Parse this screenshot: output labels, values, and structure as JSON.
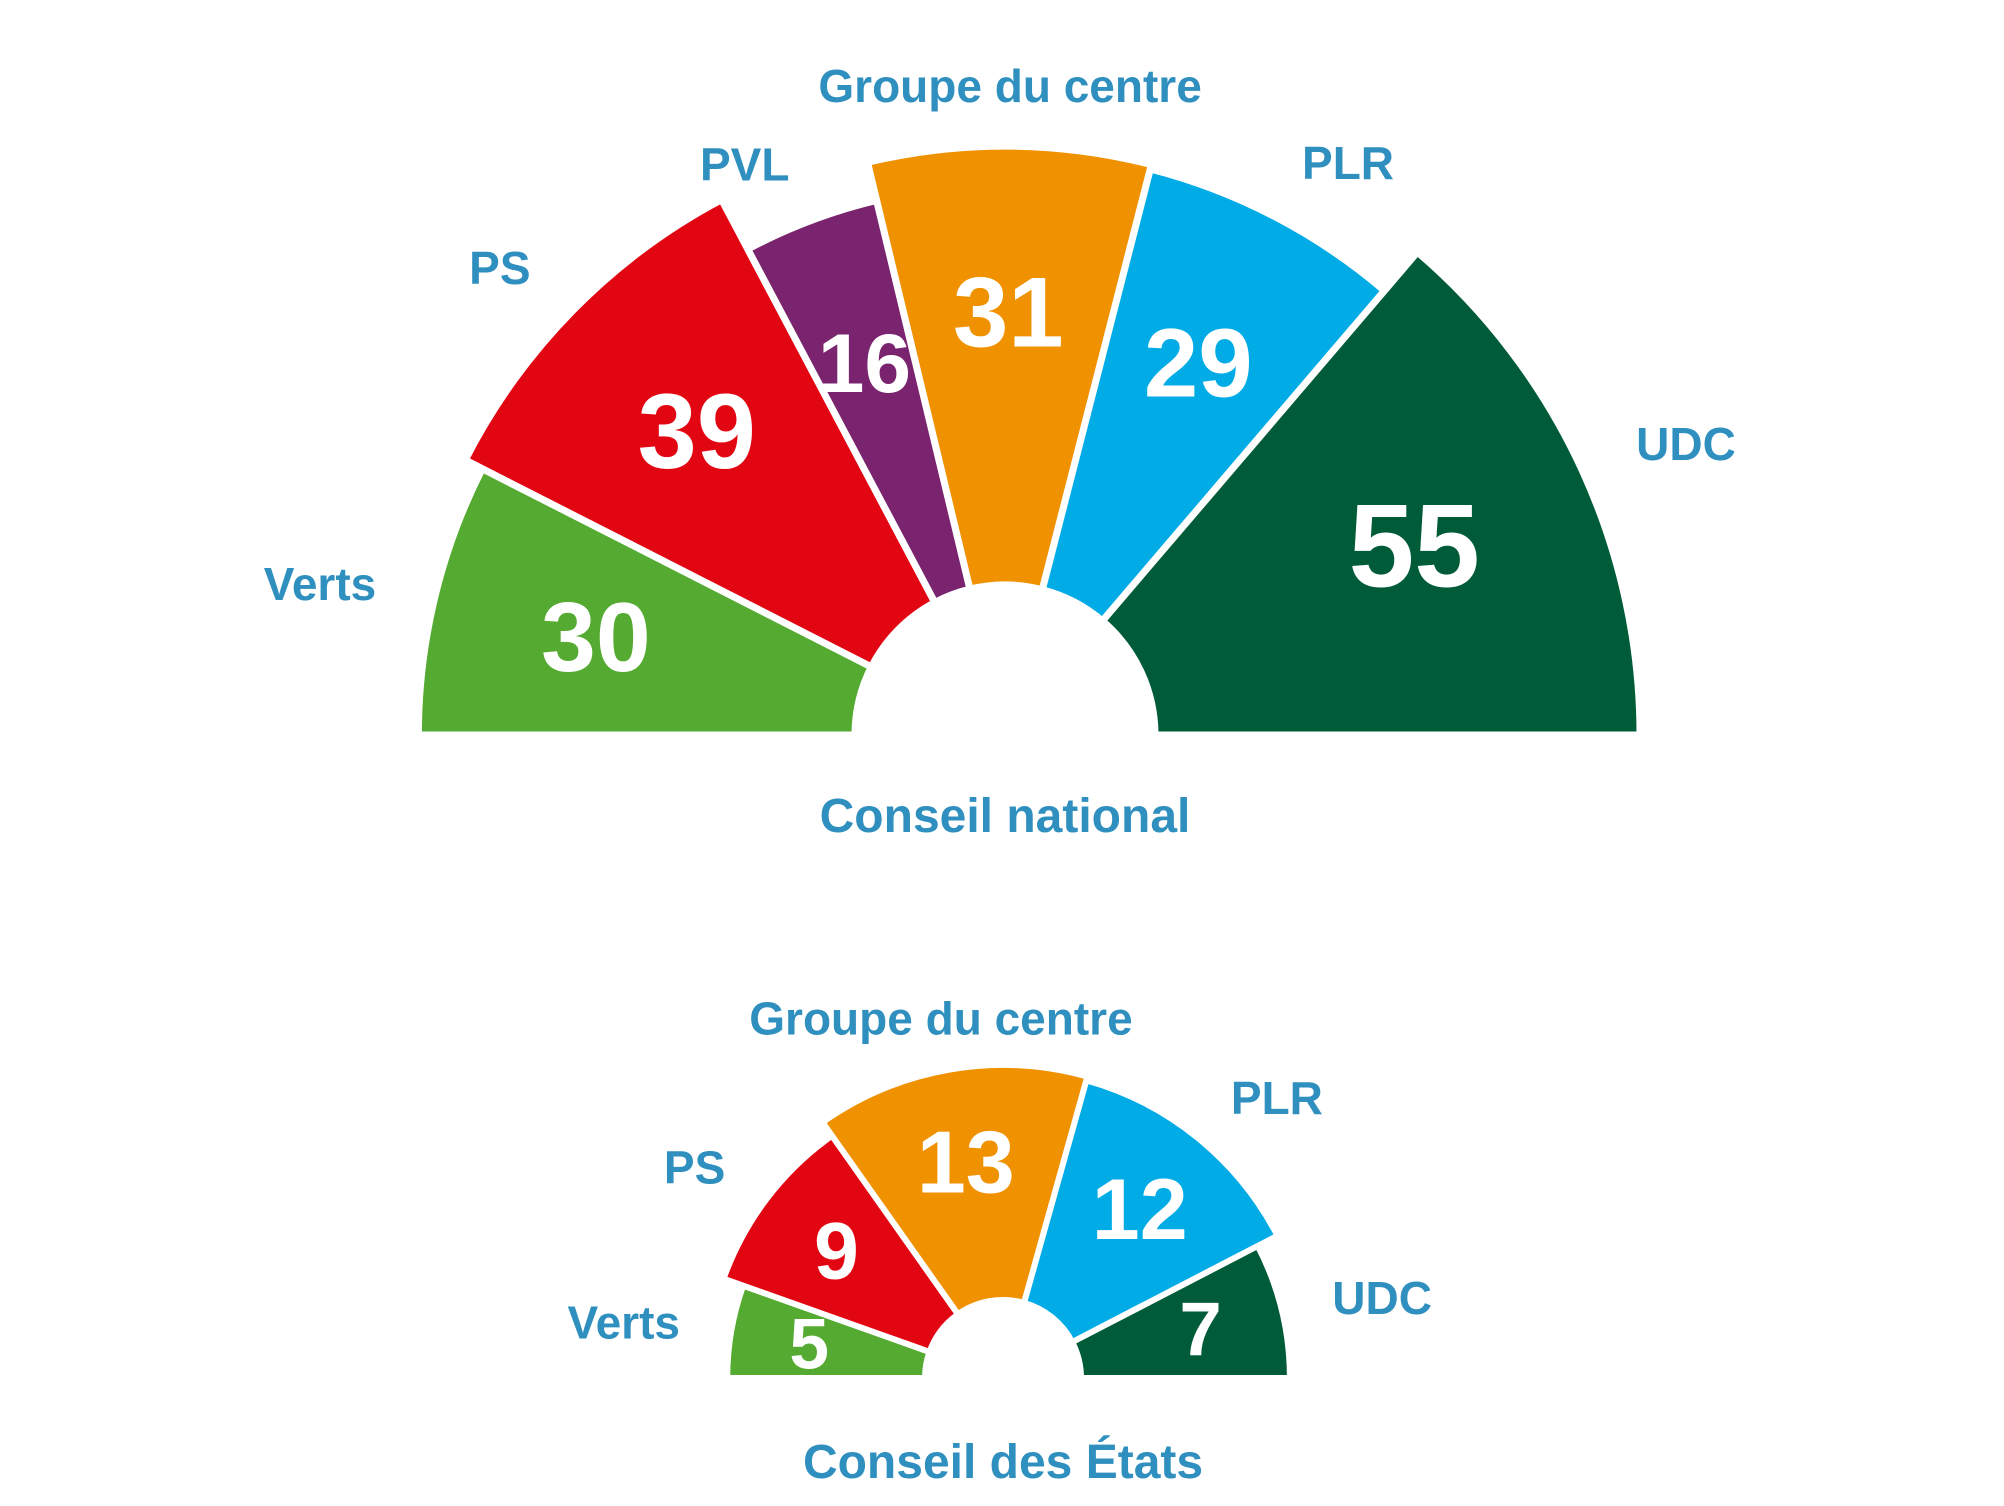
{
  "label_color": "#2f8fbf",
  "chart_data": [
    {
      "type": "pie",
      "variant": "half-donut",
      "title": "Conseil national",
      "slices": [
        {
          "label": "Verts",
          "value": 30,
          "color": "#55ab31"
        },
        {
          "label": "PS",
          "value": 39,
          "color": "#e20613"
        },
        {
          "label": "PVL",
          "value": 16,
          "color": "#7a246f"
        },
        {
          "label": "Groupe du centre",
          "value": 31,
          "color": "#f09100"
        },
        {
          "label": "PLR",
          "value": 29,
          "color": "#00abe6"
        },
        {
          "label": "UDC",
          "value": 55,
          "color": "#005c38"
        }
      ]
    },
    {
      "type": "pie",
      "variant": "half-donut",
      "title": "Conseil des États",
      "slices": [
        {
          "label": "Verts",
          "value": 5,
          "color": "#55ab31"
        },
        {
          "label": "PS",
          "value": 9,
          "color": "#e20613"
        },
        {
          "label": "Groupe du centre",
          "value": 13,
          "color": "#f09100"
        },
        {
          "label": "PLR",
          "value": 12,
          "color": "#00abe6"
        },
        {
          "label": "UDC",
          "value": 7,
          "color": "#005c38"
        }
      ]
    }
  ]
}
